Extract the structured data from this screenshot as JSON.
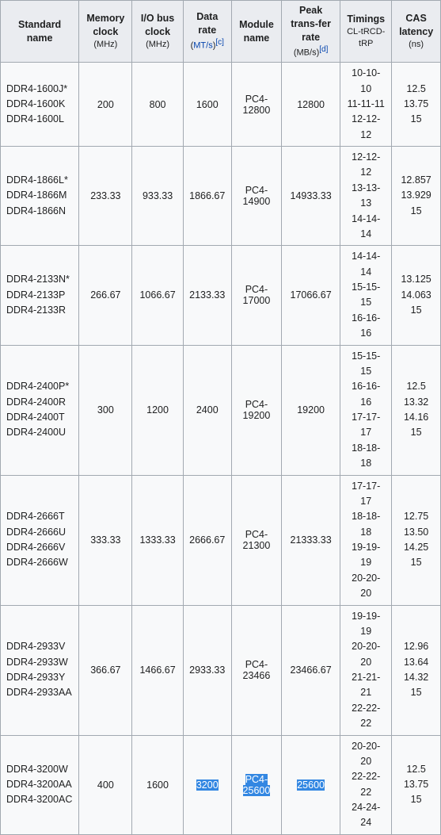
{
  "table": {
    "background": "#f8f9fa",
    "header_bg": "#eaecf0",
    "border_color": "#a2a9b1",
    "link_color": "#0645ad",
    "sel_bg": "#3387e2",
    "sel_fg": "#ffffff",
    "font_size": 12.5,
    "columns": [
      {
        "label": "Standard name",
        "unit": ""
      },
      {
        "label": "Memory clock",
        "unit": "(MHz)"
      },
      {
        "label": "I/O bus clock",
        "unit": "(MHz)"
      },
      {
        "label": "Data rate",
        "unit": "(MT/s)",
        "note": "[c]",
        "unit_is_link": true
      },
      {
        "label": "Module name",
        "unit": ""
      },
      {
        "label": "Peak trans‑fer rate",
        "unit": "(MB/s)",
        "note": "[d]"
      },
      {
        "label": "Timings",
        "unit": "CL-tRCD-tRP"
      },
      {
        "label": "CAS latency",
        "unit": "(ns)"
      }
    ],
    "groups": [
      {
        "names": [
          "DDR4-1600J*",
          "DDR4-1600K",
          "DDR4-1600L"
        ],
        "mem": "200",
        "io": "800",
        "rate": "1600",
        "module": "PC4-12800",
        "peak": "12800",
        "timings": [
          "10-10-10",
          "11-11-11",
          "12-12-12"
        ],
        "cas": [
          "12.5",
          "13.75",
          "15"
        ]
      },
      {
        "names": [
          "DDR4-1866L*",
          "DDR4-1866M",
          "DDR4-1866N"
        ],
        "mem": "233.33",
        "io": "933.33",
        "rate": "1866.67",
        "module": "PC4-14900",
        "peak": "14933.33",
        "timings": [
          "12-12-12",
          "13-13-13",
          "14-14-14"
        ],
        "cas": [
          "12.857",
          "13.929",
          "15"
        ]
      },
      {
        "names": [
          "DDR4-2133N*",
          "DDR4-2133P",
          "DDR4-2133R"
        ],
        "mem": "266.67",
        "io": "1066.67",
        "rate": "2133.33",
        "module": "PC4-17000",
        "peak": "17066.67",
        "timings": [
          "14-14-14",
          "15-15-15",
          "16-16-16"
        ],
        "cas": [
          "13.125",
          "14.063",
          "15"
        ]
      },
      {
        "names": [
          "DDR4-2400P*",
          "DDR4-2400R",
          "DDR4-2400T",
          "DDR4-2400U"
        ],
        "mem": "300",
        "io": "1200",
        "rate": "2400",
        "module": "PC4-19200",
        "peak": "19200",
        "timings": [
          "15-15-15",
          "16-16-16",
          "17-17-17",
          "18-18-18"
        ],
        "cas": [
          "12.5",
          "13.32",
          "14.16",
          "15"
        ]
      },
      {
        "names": [
          "DDR4-2666T",
          "DDR4-2666U",
          "DDR4-2666V",
          "DDR4-2666W"
        ],
        "mem": "333.33",
        "io": "1333.33",
        "rate": "2666.67",
        "module": "PC4-21300",
        "peak": "21333.33",
        "timings": [
          "17-17-17",
          "18-18-18",
          "19-19-19",
          "20-20-20"
        ],
        "cas": [
          "12.75",
          "13.50",
          "14.25",
          "15"
        ]
      },
      {
        "names": [
          "DDR4-2933V",
          "DDR4-2933W",
          "DDR4-2933Y",
          "DDR4-2933AA"
        ],
        "mem": "366.67",
        "io": "1466.67",
        "rate": "2933.33",
        "module": "PC4-23466",
        "peak": "23466.67",
        "timings": [
          "19-19-19",
          "20-20-20",
          "21-21-21",
          "22-22-22"
        ],
        "cas": [
          "12.96",
          "13.64",
          "14.32",
          "15"
        ]
      },
      {
        "names": [
          "DDR4-3200W",
          "DDR4-3200AA",
          "DDR4-3200AC"
        ],
        "mem": "400",
        "io": "1600",
        "rate": "3200",
        "module": "PC4-25600",
        "peak": "25600",
        "selected": [
          "rate",
          "module",
          "peak"
        ],
        "timings": [
          "20-20-20",
          "22-22-22",
          "24-24-24"
        ],
        "cas": [
          "12.5",
          "13.75",
          "15"
        ]
      }
    ]
  }
}
